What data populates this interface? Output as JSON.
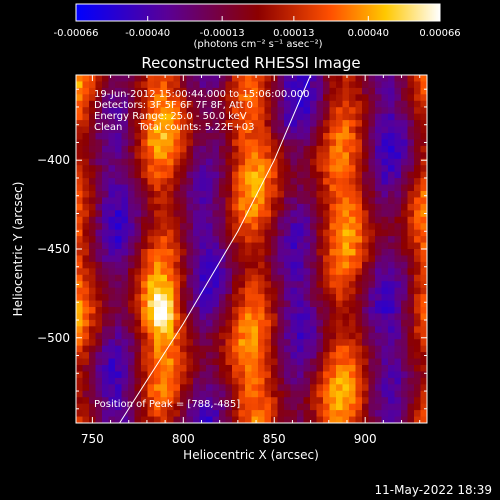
{
  "chart_data": {
    "type": "heatmap",
    "title": "Reconstructed RHESSI Image",
    "xlabel": "Heliocentric X (arcsec)",
    "ylabel": "Heliocentric Y (arcsec)",
    "xlim": [
      741,
      934
    ],
    "ylim": [
      -548,
      -352
    ],
    "x_ticks": [
      750,
      800,
      850,
      900
    ],
    "y_ticks": [
      -400,
      -450,
      -500
    ],
    "colorbar": {
      "min": -0.00066,
      "max": 0.00066,
      "ticks": [
        "-0.00066",
        "-0.00040",
        "-0.00013",
        "0.00013",
        "0.00040",
        "0.00066"
      ],
      "tick_values": [
        -0.00066,
        -0.0004,
        -0.00013,
        0.00013,
        0.0004,
        0.00066
      ],
      "unit_label": "(photons cm⁻² s⁻¹ asec⁻²)",
      "colormap": [
        "#0000ff",
        "#5a0096",
        "#8c0000",
        "#ff5000",
        "#ffc800",
        "#ffffff"
      ]
    },
    "annotations": [
      "19-Jun-2012 15:00:44.000 to 15:06:00.000",
      "Detectors: 3F 5F 6F 7F 8F, Att 0",
      "Energy Range: 25.0 - 50.0 keV",
      "Clean     Total counts: 5.22E+03"
    ],
    "peak_label": "Position of Peak = [788,-485]",
    "peak": [
      788,
      -485
    ],
    "limb": [
      [
        765,
        -548
      ],
      [
        800,
        -492
      ],
      [
        830,
        -440
      ],
      [
        850,
        -400
      ],
      [
        870,
        -352
      ]
    ],
    "grid": false
  },
  "footer": {
    "date": "11-May-2022 18:39"
  }
}
